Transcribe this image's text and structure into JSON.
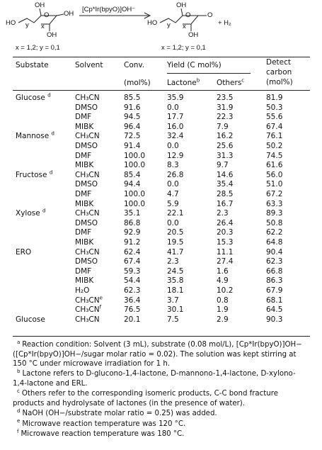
{
  "scheme": {
    "left_labels": [
      "OH",
      "O",
      "OH",
      "HO",
      "y",
      "x",
      "OH"
    ],
    "reagent": "[Cp*Ir(bpyO)]OH⁻",
    "right_labels": [
      "OH",
      "O",
      "O",
      "HO",
      "y",
      "x",
      "OH"
    ],
    "product_extra": "+ H₂",
    "left_note": "x = 1,2; y = 0,1",
    "right_note": "x = 1,2; y = 0,1"
  },
  "table": {
    "header": {
      "substrate": "Substate",
      "solvent": "Solvent",
      "conv": "Conv.",
      "conv_unit": "(mol%)",
      "yield": "Yield (C mol%)",
      "lactone": "Lactone",
      "lactone_note": "b",
      "others": "Others",
      "others_note": "c",
      "detect": [
        "Detect",
        "carbon",
        "(mol%)"
      ]
    },
    "rows": [
      {
        "substrate": "Glucose",
        "note": "d",
        "solvent": "CH₃CN",
        "conv": "85.5",
        "lactone": "35.9",
        "others": "23.5",
        "detect": "81.9"
      },
      {
        "solvent": "DMSO",
        "conv": "91.6",
        "lactone": "0.0",
        "others": "31.9",
        "detect": "50.3"
      },
      {
        "solvent": "DMF",
        "conv": "94.5",
        "lactone": "17.7",
        "others": "22.3",
        "detect": "55.6"
      },
      {
        "solvent": "MIBK",
        "conv": "96.4",
        "lactone": "16.0",
        "others": "7.9",
        "detect": "67.4"
      },
      {
        "substrate": "Mannose",
        "note": "d",
        "solvent": "CH₃CN",
        "conv": "72.5",
        "lactone": "32.4",
        "others": "16.2",
        "detect": "76.1"
      },
      {
        "solvent": "DMSO",
        "conv": "91.4",
        "lactone": "0.0",
        "others": "25.6",
        "detect": "50.2"
      },
      {
        "solvent": "DMF",
        "conv": "100.0",
        "lactone": "12.9",
        "others": "31.3",
        "detect": "74.5"
      },
      {
        "solvent": "MIBK",
        "conv": "100.0",
        "lactone": "8.3",
        "others": "9.7",
        "detect": "61.6"
      },
      {
        "substrate": "Fructose",
        "note": "d",
        "solvent": "CH₃CN",
        "conv": "85.4",
        "lactone": "26.8",
        "others": "14.6",
        "detect": "56.0"
      },
      {
        "solvent": "DMSO",
        "conv": "94.4",
        "lactone": "0.0",
        "others": "35.4",
        "detect": "51.0"
      },
      {
        "solvent": "DMF",
        "conv": "100.0",
        "lactone": "4.7",
        "others": "28.5",
        "detect": "67.2"
      },
      {
        "solvent": "MIBK",
        "conv": "100.0",
        "lactone": "5.9",
        "others": "16.7",
        "detect": "63.3"
      },
      {
        "substrate": "Xylose",
        "note": "d",
        "solvent": "CH₃CN",
        "conv": "35.1",
        "lactone": "22.1",
        "others": "2.3",
        "detect": "89.3"
      },
      {
        "solvent": "DMSO",
        "conv": "86.8",
        "lactone": "0.0",
        "others": "26.4",
        "detect": "50.8"
      },
      {
        "solvent": "DMF",
        "conv": "92.9",
        "lactone": "20.5",
        "others": "20.3",
        "detect": "62.2"
      },
      {
        "solvent": "MIBK",
        "conv": "91.2",
        "lactone": "19.5",
        "others": "15.3",
        "detect": "64.8"
      },
      {
        "substrate": "ERO",
        "solvent": "CH₃CN",
        "conv": "62.4",
        "lactone": "41.7",
        "others": "11.1",
        "detect": "90.4"
      },
      {
        "solvent": "DMSO",
        "conv": "67.4",
        "lactone": "2.3",
        "others": "27.4",
        "detect": "62.3"
      },
      {
        "solvent": "DMF",
        "conv": "59.3",
        "lactone": "24.5",
        "others": "1.6",
        "detect": "66.8"
      },
      {
        "solvent": "MIBK",
        "conv": "54.4",
        "lactone": "35.8",
        "others": "4.9",
        "detect": "86.3"
      },
      {
        "solvent": "H₂O",
        "conv": "62.3",
        "lactone": "18.1",
        "others": "10.2",
        "detect": "67.9"
      },
      {
        "solvent": "CH₃CN",
        "solvent_note": "e",
        "conv": "36.4",
        "lactone": "3.7",
        "others": "0.8",
        "detect": "68.1"
      },
      {
        "solvent": "CH₃CN",
        "solvent_note": "f",
        "conv": "76.5",
        "lactone": "30.1",
        "others": "1.9",
        "detect": "64.5"
      },
      {
        "substrate": "Glucose",
        "solvent": "CH₃CN",
        "conv": "20.1",
        "lactone": "7.5",
        "others": "2.9",
        "detect": "90.3"
      }
    ]
  },
  "footnotes": [
    {
      "mark": "a",
      "text": "Reaction condition: Solvent (3 mL), substrate (0.08 mol/L), [Cp*Ir(bpyO)]OH− ([Cp*Ir(bpyO)]OH−/sugar molar ratio = 0.02). The solution was kept stirring at 150 °C under microwave irradiation for 1 h."
    },
    {
      "mark": "b",
      "text": "Lactone refers to D-glucono-1,4-lactone, D-mannono-1,4-lactone, D-xylono-1,4-lactone and ERL."
    },
    {
      "mark": "c",
      "text": "Others refer to the corresponding isomeric products, C-C bond fracture products and hydrolysate of lactones (in the presence of water)."
    },
    {
      "mark": "d",
      "text": "NaOH (OH−/substrate molar ratio = 0.25) was added."
    },
    {
      "mark": "e",
      "text": "Microwave reaction temperature was 120 °C."
    },
    {
      "mark": "f",
      "text": "Microwave reaction temperature was 180 °C."
    }
  ]
}
